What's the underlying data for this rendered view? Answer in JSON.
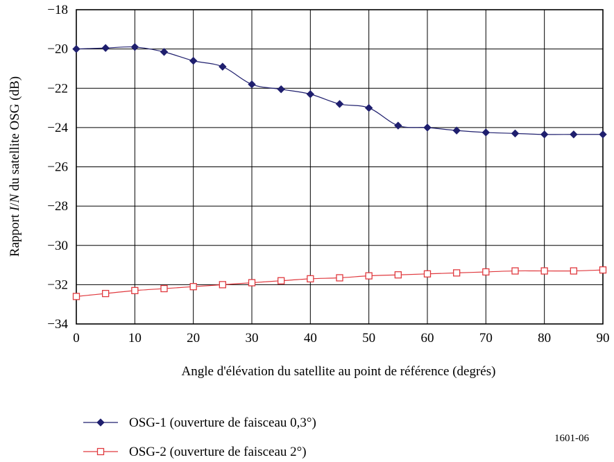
{
  "chart_data": {
    "type": "line",
    "title": "",
    "xlabel": "Angle d'élévation du satellite au point de référence (degrés)",
    "ylabel": {
      "prefix": "Rapport ",
      "italic_1": "I",
      "slash": "/",
      "italic_2": "N",
      "suffix": " du satellite OSG (dB)"
    },
    "xlim": [
      0,
      90
    ],
    "ylim": [
      -34,
      -18
    ],
    "xticks": [
      0,
      10,
      20,
      30,
      40,
      50,
      60,
      70,
      80,
      90
    ],
    "yticks": [
      -34,
      -32,
      -30,
      -28,
      -26,
      -24,
      -22,
      -20,
      -18
    ],
    "xtick_labels": [
      "0",
      "10",
      "20",
      "30",
      "40",
      "50",
      "60",
      "70",
      "80",
      "90"
    ],
    "ytick_labels": [
      "−34",
      "−32",
      "−30",
      "−28",
      "−26",
      "−24",
      "−22",
      "−20",
      "−18"
    ],
    "grid": true,
    "legend_position": "bottom-left, below the chart",
    "x": [
      0,
      5,
      10,
      15,
      20,
      25,
      30,
      35,
      40,
      45,
      50,
      55,
      60,
      65,
      70,
      75,
      80,
      85,
      90
    ],
    "series": [
      {
        "name": "OSG-1 (ouverture de faisceau 0,3°)",
        "color": "#1f1f6e",
        "marker": "filled-diamond",
        "values": [
          -20.0,
          -19.95,
          -19.9,
          -20.15,
          -20.6,
          -20.9,
          -21.8,
          -22.05,
          -22.3,
          -22.8,
          -23.0,
          -23.9,
          -24.0,
          -24.15,
          -24.25,
          -24.3,
          -24.35,
          -24.35,
          -24.35
        ]
      },
      {
        "name": "OSG-2 (ouverture de faisceau 2°)",
        "color": "#e0393e",
        "marker": "open-square",
        "values": [
          -32.6,
          -32.45,
          -32.3,
          -32.2,
          -32.1,
          -32.0,
          -31.9,
          -31.8,
          -31.7,
          -31.65,
          -31.55,
          -31.5,
          -31.45,
          -31.4,
          -31.35,
          -31.3,
          -31.3,
          -31.3,
          -31.25
        ]
      }
    ],
    "figure_id": "1601-06"
  }
}
